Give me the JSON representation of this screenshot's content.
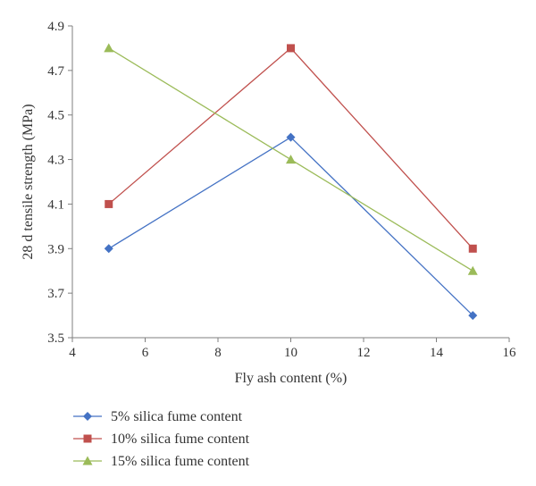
{
  "chart_data": {
    "type": "line",
    "xlabel": "Fly ash content (%)",
    "ylabel": "28 d tensile strength (MPa)",
    "xlim": [
      4,
      16
    ],
    "ylim": [
      3.5,
      4.9
    ],
    "x_ticks": [
      "4",
      "6",
      "8",
      "10",
      "12",
      "14",
      "16"
    ],
    "y_ticks": [
      "3.5",
      "3.7",
      "3.9",
      "4.1",
      "4.3",
      "4.5",
      "4.7",
      "4.9"
    ],
    "grid": false,
    "legend_position": "bottom-left",
    "x": [
      5,
      10,
      15
    ],
    "series": [
      {
        "name": "5% silica fume content",
        "values": [
          3.9,
          4.4,
          3.6
        ],
        "color": "#4472c4",
        "marker": "diamond"
      },
      {
        "name": "10% silica fume content",
        "values": [
          4.1,
          4.8,
          3.9
        ],
        "color": "#c0504d",
        "marker": "square"
      },
      {
        "name": "15% silica fume content",
        "values": [
          4.8,
          4.3,
          3.8
        ],
        "color": "#9bbb59",
        "marker": "triangle"
      }
    ]
  }
}
